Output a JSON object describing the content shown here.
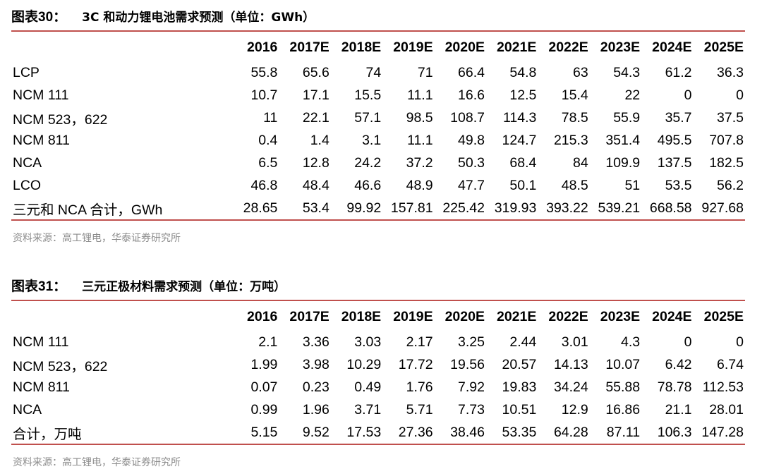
{
  "figure1": {
    "label": "图表30：",
    "title": "3C 和动力锂电池需求预测（单位：GWh）",
    "columns": [
      "2016",
      "2017E",
      "2018E",
      "2019E",
      "2020E",
      "2021E",
      "2022E",
      "2023E",
      "2024E",
      "2025E"
    ],
    "rows": [
      {
        "label": "LCP",
        "values": [
          "55.8",
          "65.6",
          "74",
          "71",
          "66.4",
          "54.8",
          "63",
          "54.3",
          "61.2",
          "36.3"
        ]
      },
      {
        "label": "NCM 111",
        "values": [
          "10.7",
          "17.1",
          "15.5",
          "11.1",
          "16.6",
          "12.5",
          "15.4",
          "22",
          "0",
          "0"
        ]
      },
      {
        "label": "NCM 523，622",
        "values": [
          "11",
          "22.1",
          "57.1",
          "98.5",
          "108.7",
          "114.3",
          "78.5",
          "55.9",
          "35.7",
          "37.5"
        ]
      },
      {
        "label": "NCM 811",
        "values": [
          "0.4",
          "1.4",
          "3.1",
          "11.1",
          "49.8",
          "124.7",
          "215.3",
          "351.4",
          "495.5",
          "707.8"
        ]
      },
      {
        "label": "NCA",
        "values": [
          "6.5",
          "12.8",
          "24.2",
          "37.2",
          "50.3",
          "68.4",
          "84",
          "109.9",
          "137.5",
          "182.5"
        ]
      },
      {
        "label": "LCO",
        "values": [
          "46.8",
          "48.4",
          "46.6",
          "48.9",
          "47.7",
          "50.1",
          "48.5",
          "51",
          "53.5",
          "56.2"
        ]
      },
      {
        "label": "三元和 NCA 合计，GWh",
        "values": [
          "28.65",
          "53.4",
          "99.92",
          "157.81",
          "225.42",
          "319.93",
          "393.22",
          "539.21",
          "668.58",
          "927.68"
        ]
      }
    ],
    "source": "资料来源：高工锂电，华泰证券研究所"
  },
  "figure2": {
    "label": "图表31：",
    "title": "三元正极材料需求预测（单位：万吨）",
    "columns": [
      "2016",
      "2017E",
      "2018E",
      "2019E",
      "2020E",
      "2021E",
      "2022E",
      "2023E",
      "2024E",
      "2025E"
    ],
    "rows": [
      {
        "label": "NCM 111",
        "values": [
          "2.1",
          "3.36",
          "3.03",
          "2.17",
          "3.25",
          "2.44",
          "3.01",
          "4.3",
          "0",
          "0"
        ]
      },
      {
        "label": "NCM 523，622",
        "values": [
          "1.99",
          "3.98",
          "10.29",
          "17.72",
          "19.56",
          "20.57",
          "14.13",
          "10.07",
          "6.42",
          "6.74"
        ]
      },
      {
        "label": "NCM 811",
        "values": [
          "0.07",
          "0.23",
          "0.49",
          "1.76",
          "7.92",
          "19.83",
          "34.24",
          "55.88",
          "78.78",
          "112.53"
        ]
      },
      {
        "label": "NCA",
        "values": [
          "0.99",
          "1.96",
          "3.71",
          "5.71",
          "7.73",
          "10.51",
          "12.9",
          "16.86",
          "21.1",
          "28.01"
        ]
      },
      {
        "label": "合计，万吨",
        "values": [
          "5.15",
          "9.52",
          "17.53",
          "27.36",
          "38.46",
          "53.35",
          "64.28",
          "87.11",
          "106.3",
          "147.28"
        ]
      }
    ],
    "source": "资料来源：高工锂电，华泰证券研究所"
  },
  "colors": {
    "rule": "#c0504d",
    "source_text": "#8c8c8c"
  }
}
